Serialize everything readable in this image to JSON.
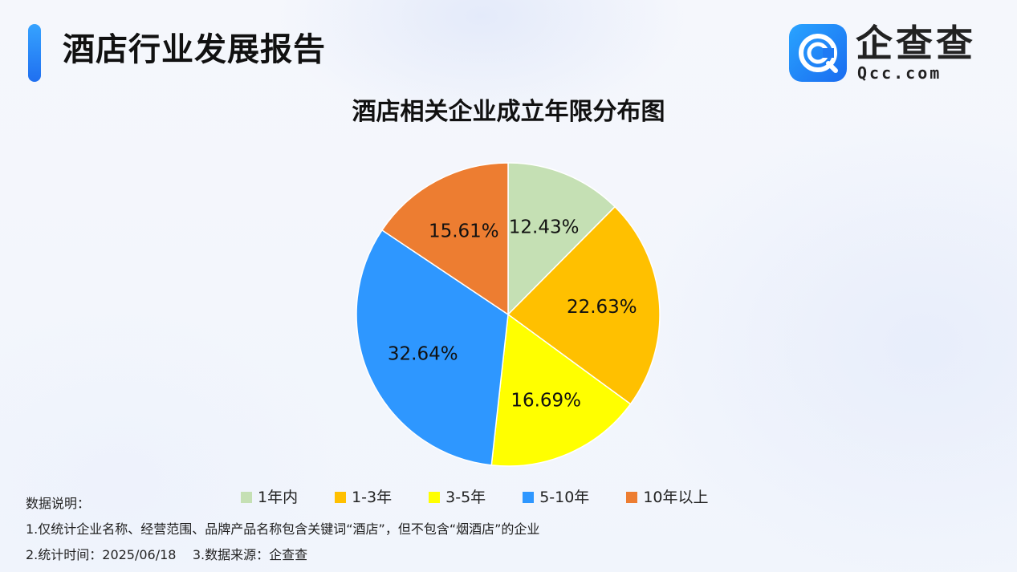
{
  "header": {
    "title": "酒店行业发展报告",
    "brand_name": "企查查",
    "brand_domain": "Qcc.com"
  },
  "chart_data": {
    "type": "pie",
    "title": "酒店相关企业成立年限分布图",
    "legend_position": "bottom",
    "slices": [
      {
        "name": "1年内",
        "value": 12.43,
        "label": "12.43%",
        "color": "#c5e0b4"
      },
      {
        "name": "1-3年",
        "value": 22.63,
        "label": "22.63%",
        "color": "#ffc000"
      },
      {
        "name": "3-5年",
        "value": 16.69,
        "label": "16.69%",
        "color": "#ffff00"
      },
      {
        "name": "5-10年",
        "value": 32.64,
        "label": "32.64%",
        "color": "#2e97ff"
      },
      {
        "name": "10年以上",
        "value": 15.61,
        "label": "15.61%",
        "color": "#ed7d31"
      }
    ]
  },
  "notes": {
    "heading": "数据说明：",
    "line1": "1.仅统计企业名称、经营范围、品牌产品名称包含关键词“酒店”，但不包含“烟酒店”的企业",
    "line2": "2.统计时间：2025/06/18    3.数据来源：企查查"
  }
}
